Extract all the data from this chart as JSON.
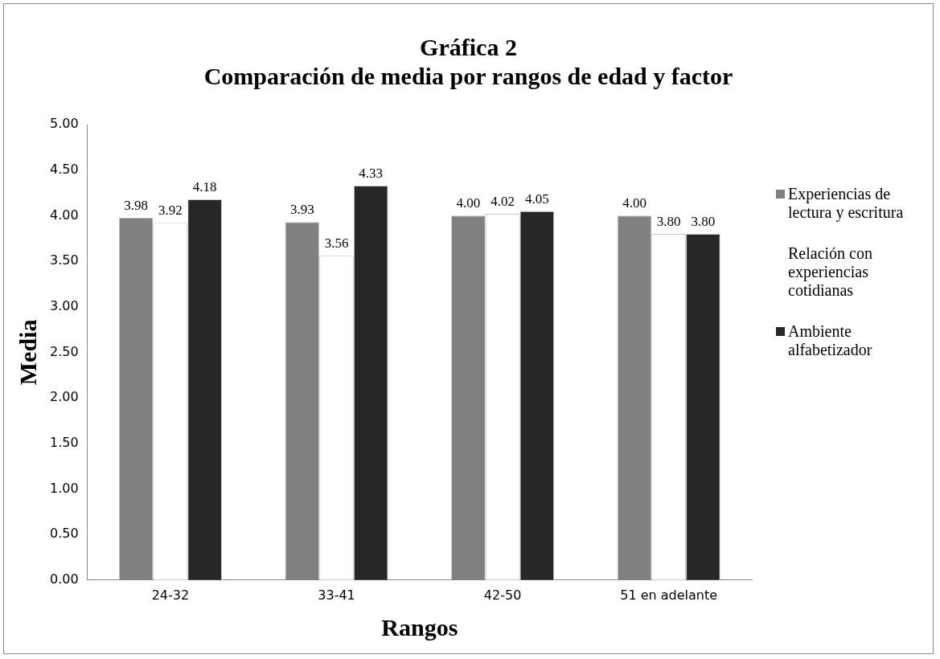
{
  "chart_data": {
    "type": "bar",
    "title": "Gráfica 2",
    "subtitle": "Comparación de media por rangos de edad y factor",
    "xlabel": "Rangos",
    "ylabel": "Media",
    "categories": [
      "24-32",
      "33-41",
      "42-50",
      "51 en adelante"
    ],
    "series": [
      {
        "name": "Experiencias de lectura y escritura",
        "color": "#808080",
        "values": [
          3.98,
          3.93,
          4.0,
          4.0
        ],
        "value_labels": [
          "3.98",
          "3.93",
          "4.00",
          "4.00"
        ]
      },
      {
        "name": "Relación con experiencias cotidianas",
        "color": "#ffffff",
        "values": [
          3.92,
          3.56,
          4.02,
          3.8
        ],
        "value_labels": [
          "3.92",
          "3.56",
          "4.02",
          "3.80"
        ]
      },
      {
        "name": "Ambiente alfabetizador",
        "color": "#262626",
        "values": [
          4.18,
          4.33,
          4.05,
          3.8
        ],
        "value_labels": [
          "4.18",
          "4.33",
          "4.05",
          "3.80"
        ]
      }
    ],
    "ylim": [
      0,
      5
    ],
    "yticks": [
      {
        "value": 0,
        "label": "0.00"
      },
      {
        "value": 0.5,
        "label": "0.50"
      },
      {
        "value": 1,
        "label": "1.00"
      },
      {
        "value": 1.5,
        "label": "1.50"
      },
      {
        "value": 2,
        "label": "2.00"
      },
      {
        "value": 2.5,
        "label": "2.50"
      },
      {
        "value": 3,
        "label": "3.00"
      },
      {
        "value": 3.5,
        "label": "3.50"
      },
      {
        "value": 4,
        "label": "4.00"
      },
      {
        "value": 4.5,
        "label": "4.50"
      },
      {
        "value": 5,
        "label": "5.00"
      }
    ],
    "grid": false,
    "legend": "right"
  }
}
